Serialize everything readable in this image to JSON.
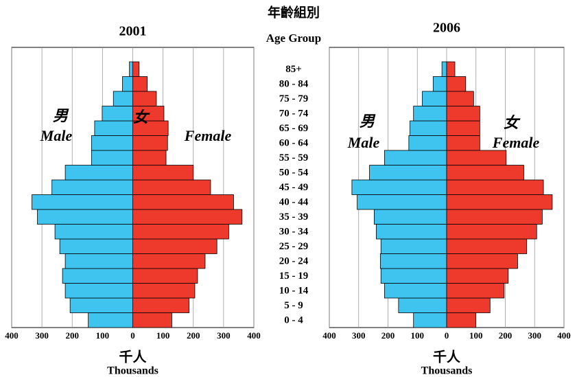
{
  "age_group_title": {
    "zh": "年齡組別",
    "en": "Age Group"
  },
  "categories": [
    "0 - 4",
    "5 - 9",
    "10 - 14",
    "15 - 19",
    "20 - 24",
    "25 - 29",
    "30 - 34",
    "35 - 39",
    "40 - 44",
    "45 - 49",
    "50 - 54",
    "55 - 59",
    "60 - 64",
    "65 - 69",
    "70 - 74",
    "75 - 79",
    "80 - 84",
    "85+"
  ],
  "chart_data": [
    {
      "type": "pyramid",
      "title": "2001",
      "xlabel_zh": "千人",
      "xlabel": "Thousands",
      "xlim": [
        -400,
        400
      ],
      "xticks": [
        {
          "value": -400,
          "label": "400"
        },
        {
          "value": -300,
          "label": "300"
        },
        {
          "value": -200,
          "label": "200"
        },
        {
          "value": -100,
          "label": "100"
        },
        0,
        100,
        200,
        300,
        400
      ],
      "grid": true,
      "series": [
        {
          "name": "Male",
          "name_zh": "男",
          "side": "left",
          "color": "#3ec4ee",
          "values": [
            147,
            207,
            223,
            232,
            223,
            241,
            257,
            315,
            333,
            267,
            223,
            136,
            136,
            126,
            101,
            64,
            34,
            11
          ]
        },
        {
          "name": "Female",
          "name_zh": "女",
          "side": "right",
          "color": "#ee3a2d",
          "values": [
            129,
            186,
            205,
            214,
            239,
            278,
            317,
            361,
            333,
            257,
            200,
            110,
            115,
            117,
            103,
            78,
            48,
            21
          ]
        }
      ]
    },
    {
      "type": "pyramid",
      "title": "2006",
      "xlabel_zh": "千人",
      "xlabel": "Thousands",
      "xlim": [
        -400,
        400
      ],
      "xticks": [
        {
          "value": -400,
          "label": "400"
        },
        {
          "value": -300,
          "label": "300"
        },
        {
          "value": -200,
          "label": "200"
        },
        {
          "value": -100,
          "label": "100"
        },
        0,
        100,
        200,
        300,
        400
      ],
      "grid": true,
      "series": [
        {
          "name": "Male",
          "name_zh": "男",
          "side": "left",
          "color": "#3ec4ee",
          "values": [
            113,
            164,
            212,
            224,
            226,
            224,
            240,
            247,
            305,
            323,
            263,
            212,
            129,
            125,
            113,
            83,
            46,
            16
          ]
        },
        {
          "name": "Female",
          "name_zh": "女",
          "side": "right",
          "color": "#ee3a2d",
          "values": [
            99,
            148,
            196,
            210,
            242,
            273,
            307,
            326,
            360,
            330,
            263,
            203,
            113,
            113,
            113,
            92,
            65,
            28
          ]
        }
      ]
    }
  ]
}
